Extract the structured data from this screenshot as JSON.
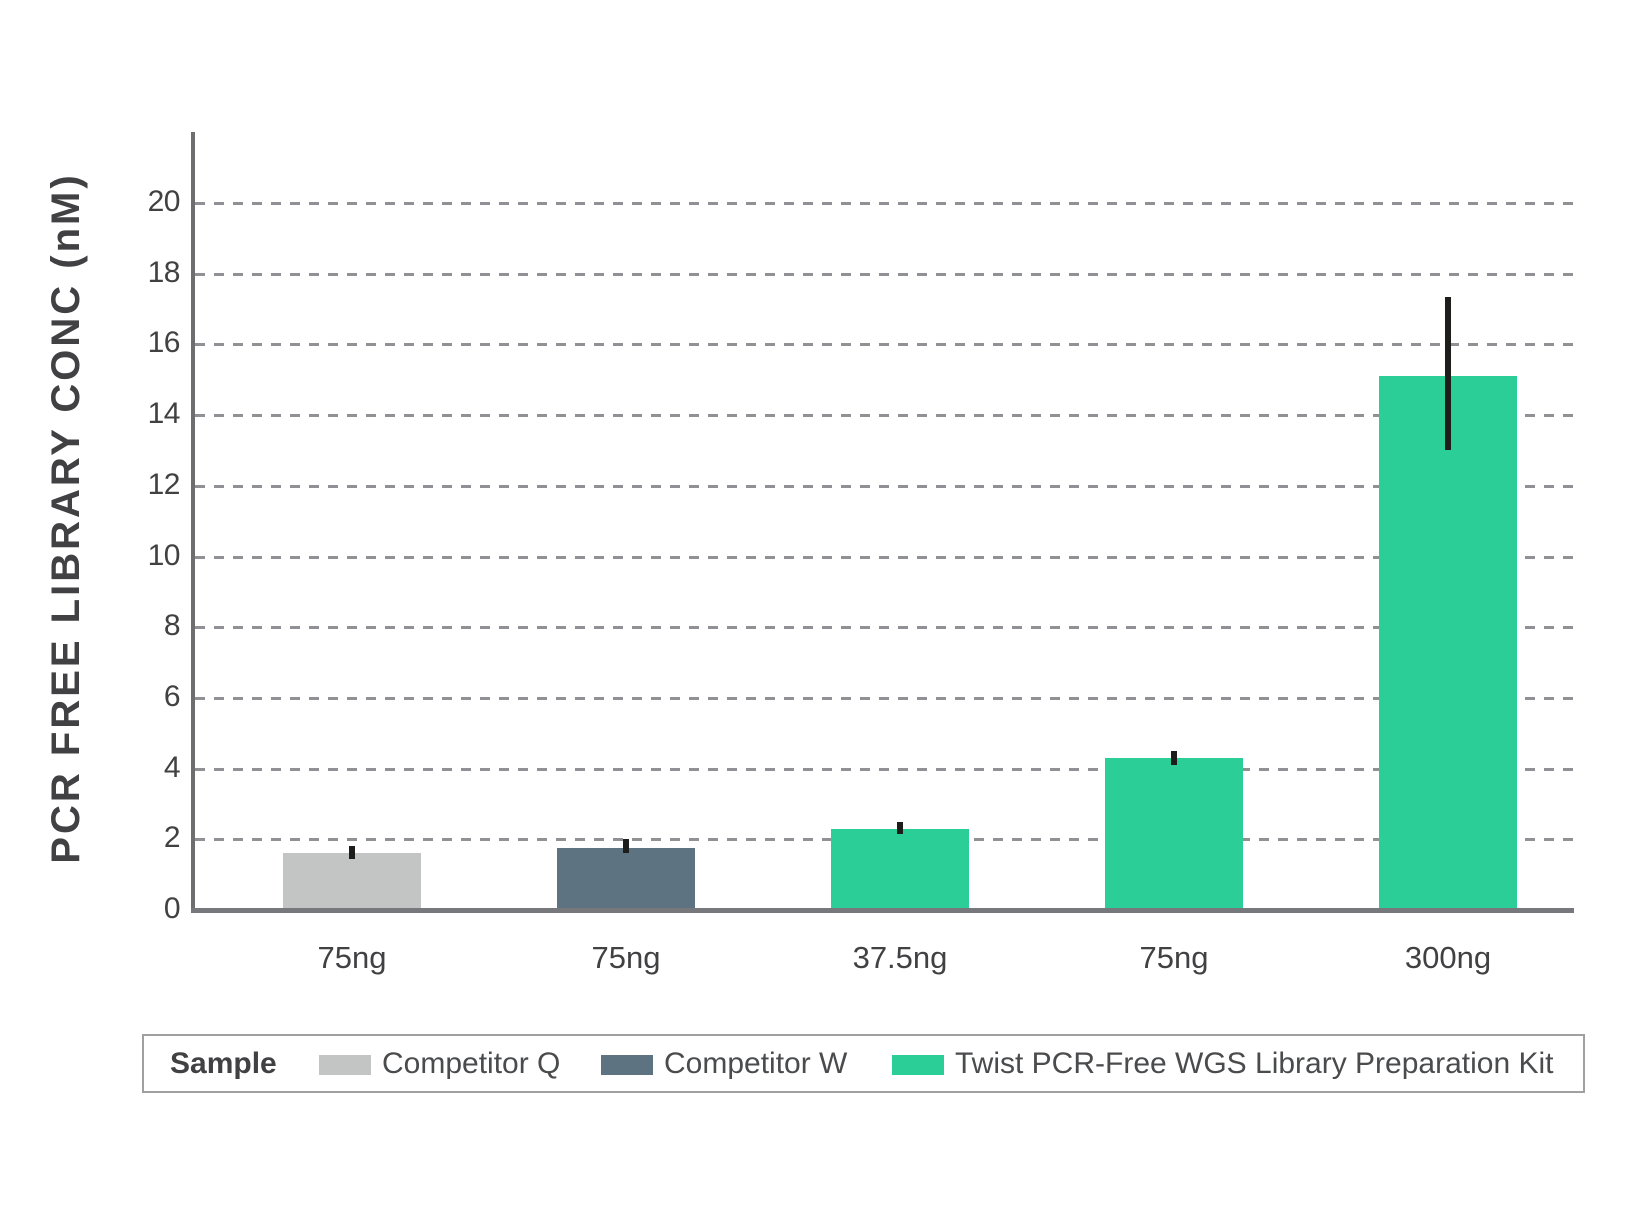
{
  "chart_data": {
    "type": "bar",
    "title": "",
    "xlabel": "",
    "ylabel": "PCR FREE LIBRARY CONC (nM)",
    "ylim": [
      0,
      21.5
    ],
    "yticks": [
      0,
      2,
      4,
      6,
      8,
      10,
      12,
      14,
      16,
      18,
      20
    ],
    "grid": "horizontal dashed gridlines at each tick above 0",
    "legend_position": "bottom",
    "categories": [
      "75ng",
      "75ng",
      "37.5ng",
      "75ng",
      "300ng"
    ],
    "bars": [
      {
        "category": "75ng",
        "series": "Competitor Q",
        "value": 1.6,
        "error_low": 1.45,
        "error_high": 1.8,
        "color": "#c3c4c4"
      },
      {
        "category": "75ng",
        "series": "Competitor W",
        "value": 1.75,
        "error_low": 1.6,
        "error_high": 2.0,
        "color": "#5e7382"
      },
      {
        "category": "37.5ng",
        "series": "Twist PCR-Free WGS Library Preparation Kit",
        "value": 2.3,
        "error_low": 2.15,
        "error_high": 2.5,
        "color": "#2bce96"
      },
      {
        "category": "75ng",
        "series": "Twist PCR-Free WGS Library Preparation Kit",
        "value": 4.3,
        "error_low": 4.1,
        "error_high": 4.5,
        "color": "#2bce96"
      },
      {
        "category": "300ng",
        "series": "Twist PCR-Free WGS Library Preparation Kit",
        "value": 15.1,
        "error_low": 13.0,
        "error_high": 17.35,
        "color": "#2bce96"
      }
    ],
    "legend": {
      "title": "Sample",
      "entries": [
        {
          "label": "Competitor Q",
          "color": "#c3c4c4"
        },
        {
          "label": "Competitor W",
          "color": "#5e7382"
        },
        {
          "label": "Twist PCR-Free WGS Library Preparation Kit",
          "color": "#2bce96"
        }
      ]
    },
    "colors": {
      "error_bar": "#1d1d1b",
      "axis": "#6e6e70",
      "gridline": "#909194",
      "text": "#414042"
    }
  }
}
